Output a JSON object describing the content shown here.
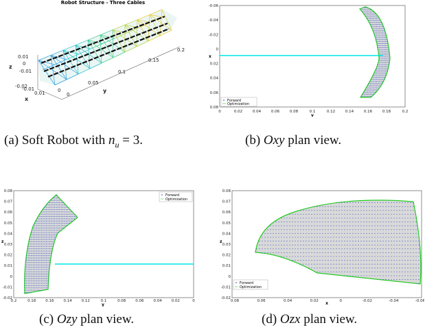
{
  "panels": [
    {
      "id": "a",
      "title": "Robot Structure - Three Cables",
      "axis_labels": {
        "x": "x",
        "y": "y",
        "z": "z"
      },
      "y_ticks": [
        "0",
        "0.05",
        "0.1",
        "0.15",
        "0.2"
      ],
      "z_ticks": [
        "0.01",
        "0",
        "-0.01",
        "-0.02"
      ],
      "x_ticks": [
        "-0.01",
        "0",
        "0.01"
      ],
      "caption": {
        "prefix": "(a) Soft Robot with ",
        "math": "n",
        "sub": "u",
        "suffix": " = 3."
      }
    },
    {
      "id": "b",
      "xlabel": "y",
      "ylabel": "x",
      "xticks": [
        "0",
        "0.02",
        "0.04",
        "0.06",
        "0.08",
        "0.1",
        "0.12",
        "0.14",
        "0.16",
        "0.18",
        "0.2"
      ],
      "yticks": [
        "-0.06",
        "-0.04",
        "-0.02",
        "0",
        "0.02",
        "0.04",
        "0.06",
        "0.08"
      ],
      "legend": [
        "Forward",
        "Optimization"
      ],
      "legend_position": "bottom-left",
      "caption": {
        "prefix": "(b) ",
        "math": "Oxy",
        "suffix": " plan view."
      }
    },
    {
      "id": "c",
      "xlabel": "y",
      "ylabel": "z",
      "xticks": [
        "0.2",
        "0.18",
        "0.16",
        "0.14",
        "0.12",
        "0.1",
        "0.08",
        "0.06",
        "0.04",
        "0.02",
        "0"
      ],
      "yticks": [
        "0.08",
        "0.07",
        "0.06",
        "0.05",
        "0.04",
        "0.03",
        "0.02",
        "0.01",
        "0",
        "-0.01",
        "-0.02"
      ],
      "legend": [
        "Forward",
        "Optimization"
      ],
      "legend_position": "top-right",
      "caption": {
        "prefix": "(c) ",
        "math": "Ozy",
        "suffix": " plan view."
      }
    },
    {
      "id": "d",
      "xlabel": "x",
      "ylabel": "z",
      "xticks": [
        "0.08",
        "0.06",
        "0.04",
        "0.02",
        "0",
        "-0.02",
        "-0.04",
        "-0.06"
      ],
      "yticks": [
        "0.08",
        "0.07",
        "0.06",
        "0.05",
        "0.04",
        "0.03",
        "0.02",
        "0.01",
        "0",
        "-0.01",
        "-0.02"
      ],
      "legend": [
        "Forward",
        "Optimization"
      ],
      "legend_position": "bottom-left",
      "caption": {
        "prefix": "(d) ",
        "math": "Ozx",
        "suffix": " plan view."
      }
    }
  ],
  "colors": {
    "forward": "#1f3fbf",
    "optimization": "#22cc22",
    "cyan_line": "#00e5e5",
    "fill": "#d9d9d9"
  }
}
